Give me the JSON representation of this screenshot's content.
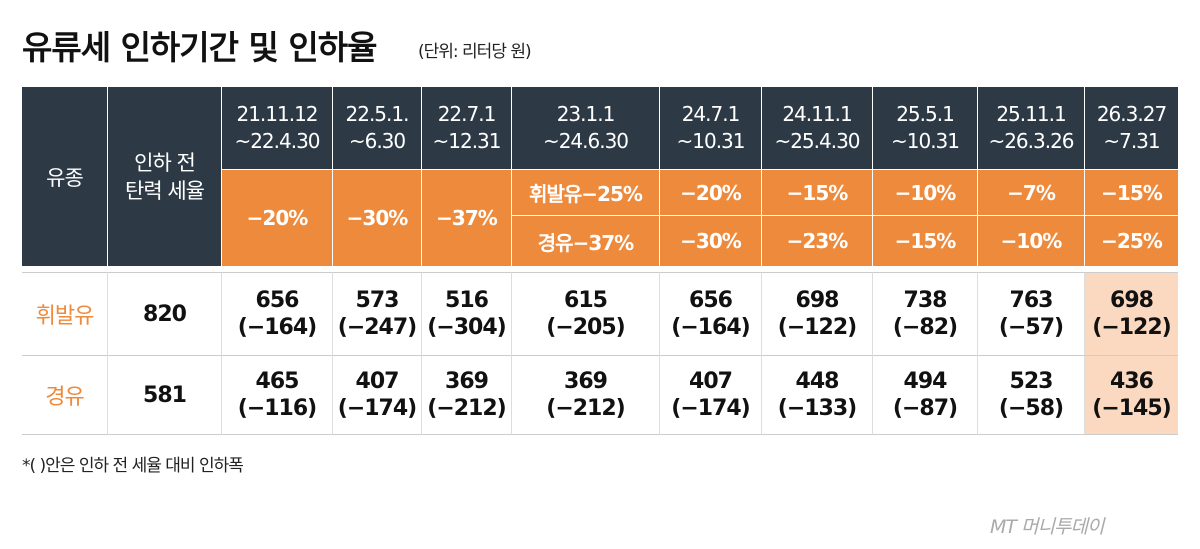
{
  "header": {
    "title": "유류세 인하기간 및 인하율",
    "unit": "(단위: 리터당 원)"
  },
  "table": {
    "head_fuel": "유종",
    "head_base": [
      "인하 전",
      "탄력 세율"
    ],
    "columns": [
      {
        "period": [
          "21.11.12",
          "~22.4.30"
        ],
        "rate": "−20%"
      },
      {
        "period": [
          "22.5.1.",
          "~6.30"
        ],
        "rate": "−30%"
      },
      {
        "period": [
          "22.7.1",
          "~12.31"
        ],
        "rate": "−37%"
      },
      {
        "period": [
          "23.1.1",
          "~24.6.30"
        ],
        "rate_gasoline": "휘발유−25%",
        "rate_diesel": "경유−37%"
      },
      {
        "period": [
          "24.7.1",
          "~10.31"
        ],
        "rate_gasoline": "−20%",
        "rate_diesel": "−30%"
      },
      {
        "period": [
          "24.11.1",
          "~25.4.30"
        ],
        "rate_gasoline": "−15%",
        "rate_diesel": "−23%"
      },
      {
        "period": [
          "25.5.1",
          "~10.31"
        ],
        "rate_gasoline": "−10%",
        "rate_diesel": "−15%"
      },
      {
        "period": [
          "25.11.1",
          "~26.3.26"
        ],
        "rate_gasoline": "−7%",
        "rate_diesel": "−10%"
      },
      {
        "period": [
          "26.3.27",
          "~7.31"
        ],
        "rate_gasoline": "−15%",
        "rate_diesel": "−25%"
      }
    ],
    "rows": [
      {
        "fuel": "휘발유",
        "base": 820,
        "cells": [
          {
            "price": 656,
            "cut": "(−164)"
          },
          {
            "price": 573,
            "cut": "(−247)"
          },
          {
            "price": 516,
            "cut": "(−304)"
          },
          {
            "price": 615,
            "cut": "(−205)"
          },
          {
            "price": 656,
            "cut": "(−164)"
          },
          {
            "price": 698,
            "cut": "(−122)"
          },
          {
            "price": 738,
            "cut": "(−82)"
          },
          {
            "price": 763,
            "cut": "(−57)"
          },
          {
            "price": 698,
            "cut": "(−122)"
          }
        ]
      },
      {
        "fuel": "경유",
        "base": 581,
        "cells": [
          {
            "price": 465,
            "cut": "(−116)"
          },
          {
            "price": 407,
            "cut": "(−174)"
          },
          {
            "price": 369,
            "cut": "(−212)"
          },
          {
            "price": 369,
            "cut": "(−212)"
          },
          {
            "price": 407,
            "cut": "(−174)"
          },
          {
            "price": 448,
            "cut": "(−133)"
          },
          {
            "price": 494,
            "cut": "(−87)"
          },
          {
            "price": 523,
            "cut": "(−58)"
          },
          {
            "price": 436,
            "cut": "(−145)"
          }
        ]
      }
    ]
  },
  "footnote": "*( )안은 인하 전 세율 대비 인하폭",
  "logo": "MT 머니투데이"
}
